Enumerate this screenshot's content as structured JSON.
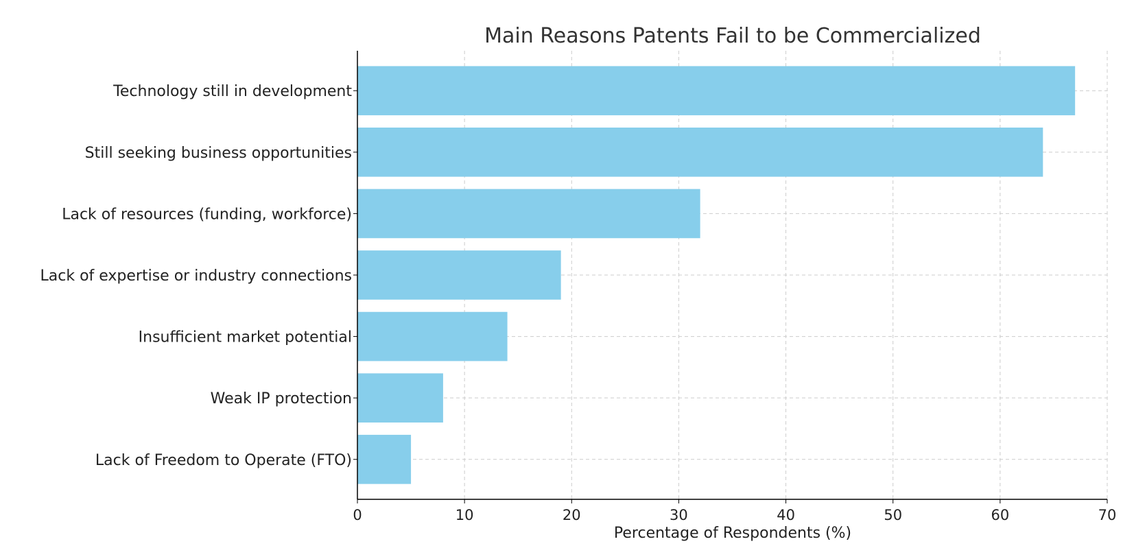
{
  "chart_data": {
    "type": "bar",
    "orientation": "horizontal",
    "title": "Main Reasons Patents Fail to be Commercialized",
    "xlabel": "Percentage of Respondents (%)",
    "ylabel": "",
    "categories": [
      "Technology still in development",
      "Still seeking business opportunities",
      "Lack of resources (funding, workforce)",
      "Lack of expertise or industry connections",
      "Insufficient market potential",
      "Weak IP protection",
      "Lack of Freedom to Operate (FTO)"
    ],
    "values": [
      67,
      64,
      32,
      19,
      14,
      8,
      5
    ],
    "xlim": [
      0,
      70
    ],
    "xticks": [
      0,
      10,
      20,
      30,
      40,
      50,
      60,
      70
    ],
    "grid": true,
    "bar_color": "#87CEEB"
  }
}
